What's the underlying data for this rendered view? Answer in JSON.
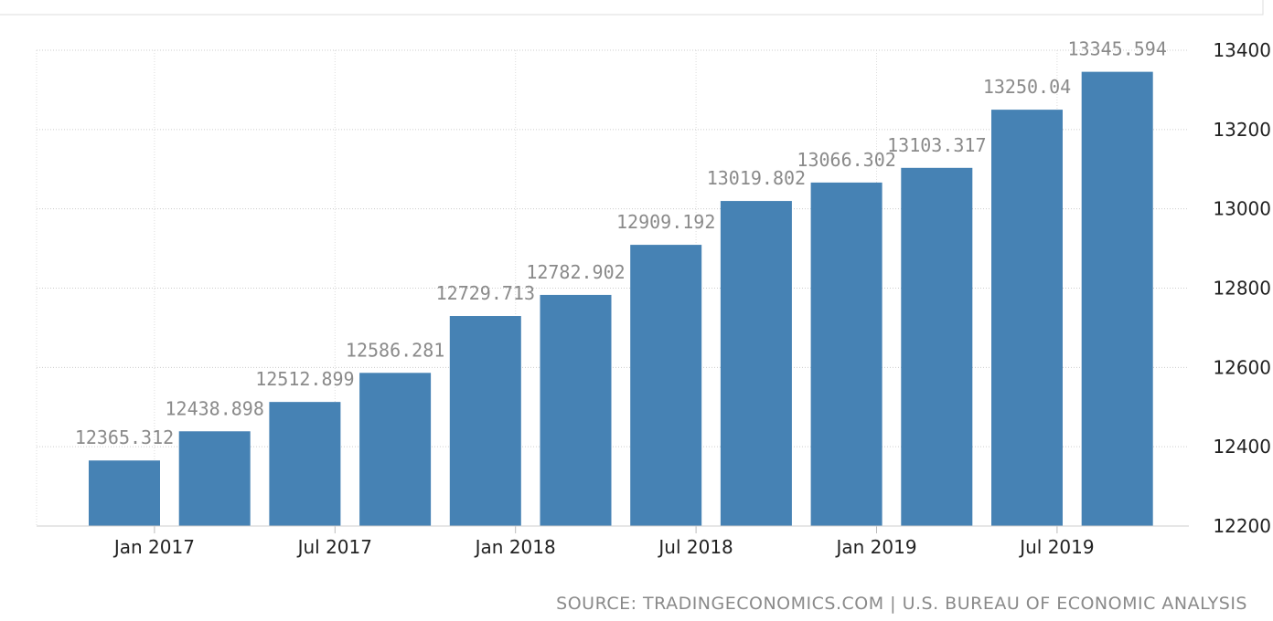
{
  "chart_data": {
    "type": "bar",
    "categories": [
      null,
      null,
      null,
      null,
      null,
      null,
      null,
      null,
      null,
      null,
      null,
      null
    ],
    "values": [
      12365.312,
      12438.898,
      12512.899,
      12586.281,
      12729.713,
      12782.902,
      12909.192,
      13019.802,
      13066.302,
      13103.317,
      13250.04,
      13345.594
    ],
    "color": "#4682b4",
    "xtick_labels": [
      "Jan 2017",
      "Jul 2017",
      "Jan 2018",
      "Jul 2018",
      "Jan 2019",
      "Jul 2019"
    ],
    "ylim": [
      12200,
      13400
    ],
    "yticks": [
      12200,
      12400,
      12600,
      12800,
      13000,
      13200,
      13400
    ],
    "grid": true,
    "source": "SOURCE: TRADINGECONOMICS.COM | U.S. BUREAU OF ECONOMIC ANALYSIS"
  }
}
